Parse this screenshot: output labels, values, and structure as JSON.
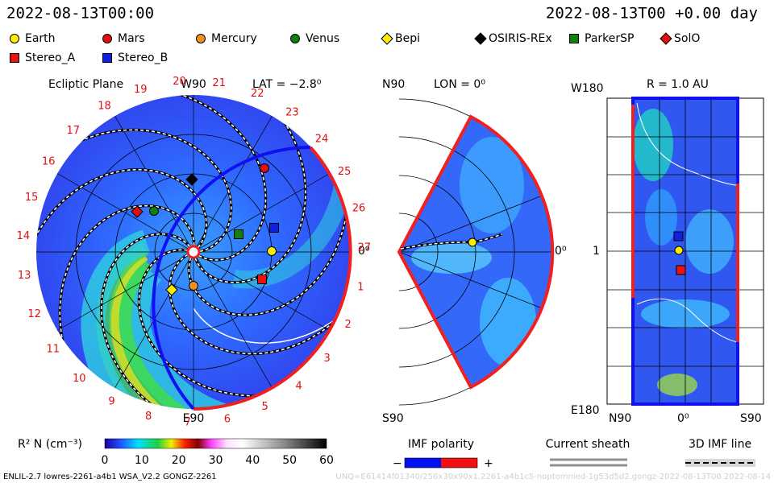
{
  "header": {
    "datetime": "2022-08-13T00:00",
    "run_time": "2022-08-13T00 +0.00 day"
  },
  "legend": [
    "Earth",
    "Mars",
    "Mercury",
    "Venus",
    "Bepi",
    "OSIRIS-REx",
    "ParkerSP",
    "SolO",
    "Stereo_A",
    "Stereo_B"
  ],
  "ecliptic": {
    "title": "Ecliptic Plane",
    "top": "W90",
    "lat": "LAT = −2.8⁰",
    "right": "0⁰",
    "bottom": "E90",
    "longitude_marks": [
      1,
      2,
      3,
      4,
      5,
      6,
      7,
      8,
      9,
      10,
      11,
      12,
      13,
      14,
      15,
      16,
      17,
      18,
      19,
      20,
      21,
      22,
      23,
      24,
      25,
      26,
      27
    ]
  },
  "meridional": {
    "top": "N90",
    "lon": "LON = 0⁰",
    "right": "0⁰",
    "bottom": "S90"
  },
  "radial": {
    "top": "W180",
    "title": "R = 1.0 AU",
    "middle": "1",
    "bottom": "E180",
    "x_labels": [
      "N90",
      "0⁰",
      "S90"
    ]
  },
  "density_colorbar": {
    "label": "R² N (cm⁻³)",
    "ticks": [
      0,
      10,
      20,
      30,
      40,
      50,
      60
    ]
  },
  "imf_polarity": {
    "title": "IMF polarity",
    "minus": "−",
    "plus": "+"
  },
  "current_sheath": "Current sheath",
  "imf_line": "3D IMF line",
  "footer": {
    "left": "ENLIL-2.7 lowres-2261-a4b1 WSA_V2.2 GONGZ-2261",
    "right": "UNQ=E61414f01340/256x30x90x1.2261-a4b1c5-noptomnied-1g53d5d2.gongz-2022-08-13T00  2022-08-14"
  }
}
